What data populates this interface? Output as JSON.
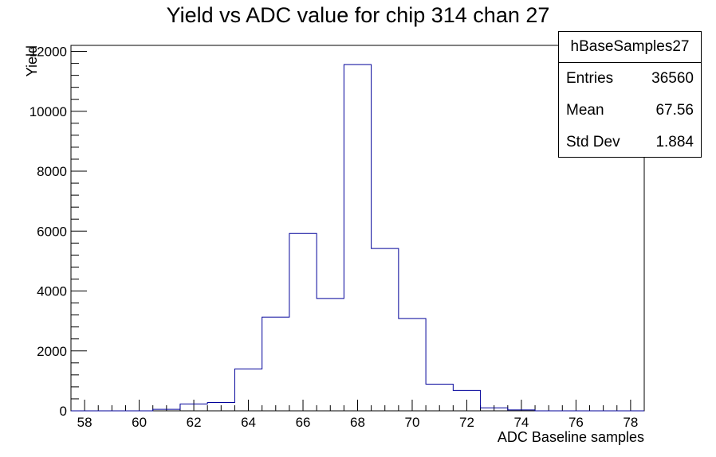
{
  "chart_data": {
    "type": "bar",
    "title": "Yield vs ADC value for chip 314 chan 27",
    "xlabel": "ADC Baseline samples",
    "ylabel": "Yield",
    "xlim": [
      57.5,
      78.5
    ],
    "ylim": [
      0,
      12200
    ],
    "bin_width": 1,
    "x": [
      58,
      59,
      60,
      61,
      62,
      63,
      64,
      65,
      66,
      67,
      68,
      69,
      70,
      71,
      72,
      73,
      74,
      75,
      76,
      77,
      78
    ],
    "values": [
      0,
      0,
      0,
      50,
      230,
      280,
      1400,
      3130,
      5920,
      3750,
      11560,
      5420,
      3080,
      890,
      680,
      100,
      30,
      0,
      0,
      0,
      0
    ],
    "x_ticks": [
      58,
      60,
      62,
      64,
      66,
      68,
      70,
      72,
      74,
      76,
      78
    ],
    "y_ticks": [
      0,
      2000,
      4000,
      6000,
      8000,
      10000,
      12000
    ],
    "line_color": "#000099",
    "grid": false,
    "legend_position": "top-right"
  },
  "stats_box": {
    "name": "hBaseSamples27",
    "rows": [
      {
        "label": "Entries",
        "value": "36560"
      },
      {
        "label": "Mean",
        "value": "67.56"
      },
      {
        "label": "Std Dev",
        "value": "1.884"
      }
    ]
  }
}
